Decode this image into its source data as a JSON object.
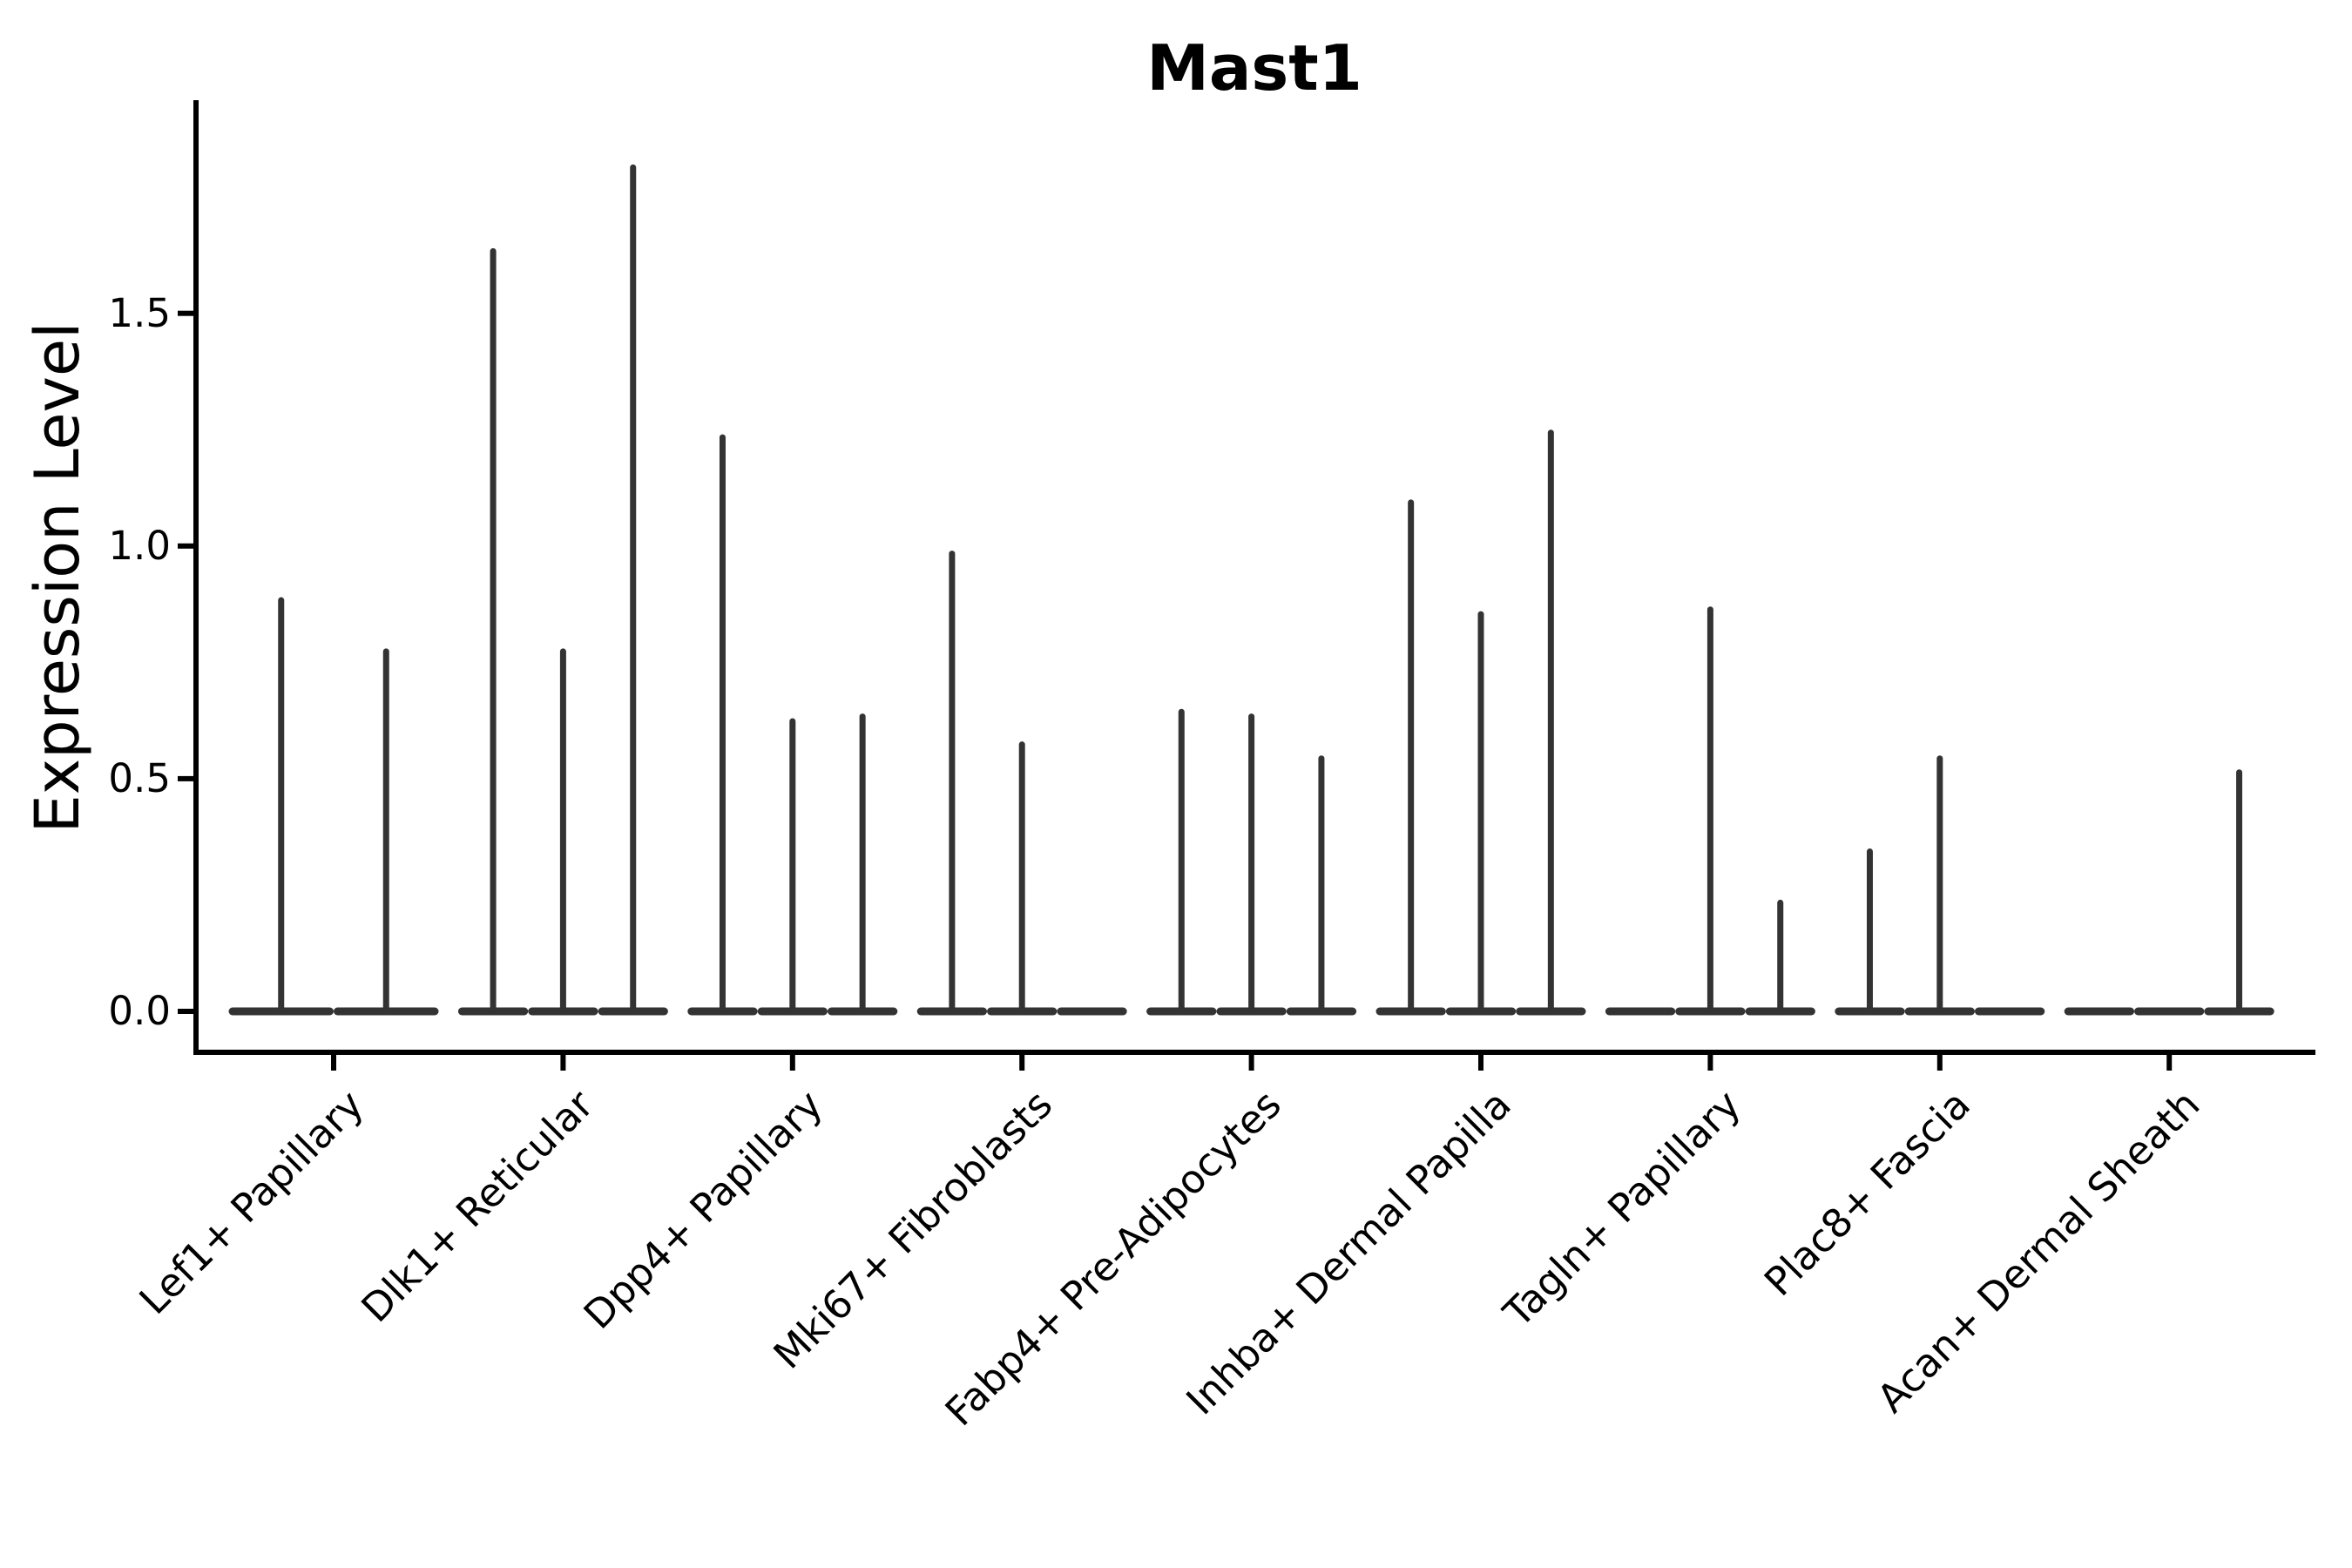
{
  "figure": {
    "background": "#ffffff",
    "text_color": "#000000"
  },
  "chart_data": {
    "type": "violin",
    "title": "Mast1",
    "ylabel": "Expression Level",
    "xlabel": "",
    "yticks": [
      "0.0",
      "0.5",
      "1.0",
      "1.5"
    ],
    "ytick_values": [
      0.0,
      0.5,
      1.0,
      1.5
    ],
    "ylim": [
      -0.09,
      1.96
    ],
    "grid": false,
    "legend": null,
    "violin_color": "#333333",
    "axis_color": "#000000",
    "categories": [
      {
        "label": "Lef1+ Papillary",
        "violins": [
          {
            "peak": 0.89
          },
          {
            "peak": 0.78
          }
        ]
      },
      {
        "label": "Dlk1+ Reticular",
        "violins": [
          {
            "peak": 1.64
          },
          {
            "peak": 0.78
          },
          {
            "peak": 1.82
          }
        ]
      },
      {
        "label": "Dpp4+ Papillary",
        "violins": [
          {
            "peak": 1.24
          },
          {
            "peak": 0.63
          },
          {
            "peak": 0.64
          }
        ]
      },
      {
        "label": "Mki67+ Fibroblasts",
        "violins": [
          {
            "peak": 0.99
          },
          {
            "peak": 0.58
          },
          {
            "peak": 0
          }
        ]
      },
      {
        "label": "Fabp4+ Pre-Adipocytes",
        "violins": [
          {
            "peak": 0.65
          },
          {
            "peak": 0.64
          },
          {
            "peak": 0.55
          }
        ]
      },
      {
        "label": "Inhba+ Dermal Papilla",
        "violins": [
          {
            "peak": 1.1
          },
          {
            "peak": 0.86
          },
          {
            "peak": 1.25
          }
        ]
      },
      {
        "label": "Tagln+ Papillary",
        "violins": [
          {
            "peak": 0
          },
          {
            "peak": 0.87
          },
          {
            "peak": 0.24
          }
        ]
      },
      {
        "label": "Plac8+ Fascia",
        "violins": [
          {
            "peak": 0.35
          },
          {
            "peak": 0.55
          },
          {
            "peak": 0
          }
        ]
      },
      {
        "label": "Acan+ Dermal Sheath",
        "violins": [
          {
            "peak": 0
          },
          {
            "peak": 0
          },
          {
            "peak": 0.52
          }
        ]
      }
    ],
    "notes": "Each category holds side-by-side violins collapsed at 0 expression; peak = height of the thin density spike (0 = flat violin, no spike)."
  }
}
